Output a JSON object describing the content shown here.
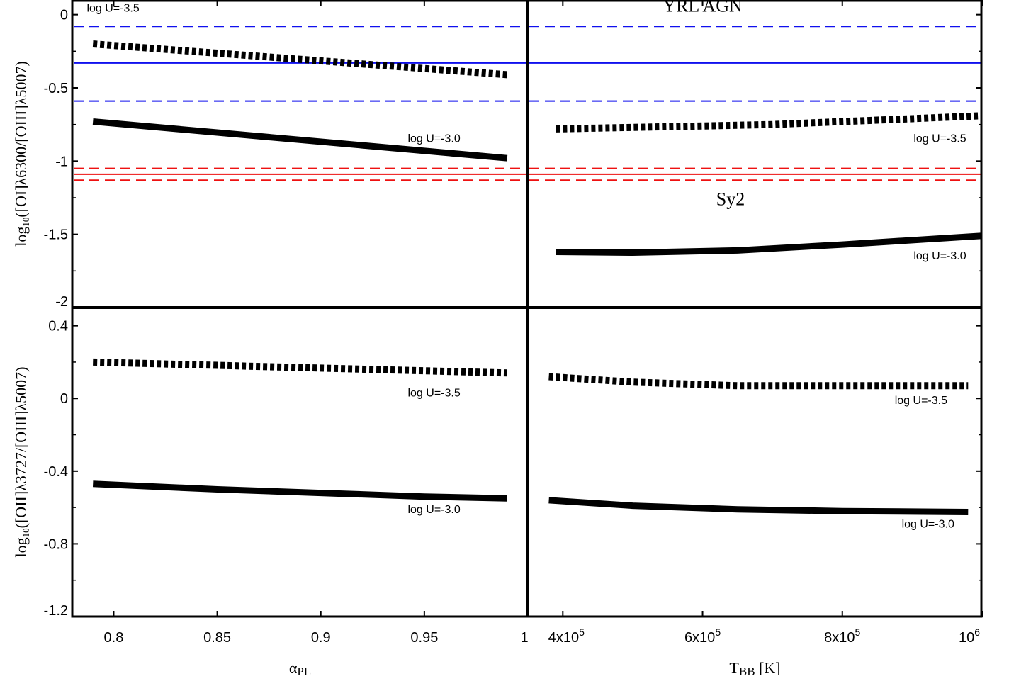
{
  "chart_data": [
    {
      "panel": "top-left",
      "type": "line",
      "xlim": [
        0.78,
        1.0
      ],
      "ylim": [
        -2,
        0.1
      ],
      "ylabel_parts": [
        "log",
        "10",
        "([OI]λ6300/[OIII]λ5007)"
      ],
      "yticks": [
        0,
        -0.5,
        -1,
        -1.5,
        -2
      ],
      "ytick_labels": [
        "0",
        "-0.5",
        "-1",
        "-1.5",
        "-2"
      ],
      "series": [
        {
          "style": "dotted",
          "x": [
            0.79,
            0.99
          ],
          "y": [
            -0.2,
            -0.41
          ]
        },
        {
          "style": "solid",
          "x": [
            0.79,
            0.99
          ],
          "y": [
            -0.73,
            -0.98
          ]
        }
      ],
      "hlines": [
        {
          "y": -0.08,
          "color": "#1010ee",
          "style": "dashed"
        },
        {
          "y": -0.33,
          "color": "#1010ee",
          "style": "solid"
        },
        {
          "y": -0.59,
          "color": "#1010ee",
          "style": "dashed"
        },
        {
          "y": -1.05,
          "color": "#ee1111",
          "style": "dashed"
        },
        {
          "y": -1.09,
          "color": "#ee1111",
          "style": "solid"
        },
        {
          "y": -1.13,
          "color": "#ee1111",
          "style": "dashed"
        }
      ],
      "annotations": [
        {
          "text": "log U=-3.5",
          "x": 0.787,
          "y": 0.02,
          "cls": "ann"
        },
        {
          "text": "log U=-3.0",
          "x": 0.942,
          "y": -0.87,
          "cls": "ann"
        }
      ]
    },
    {
      "panel": "top-right",
      "type": "line",
      "xlim": [
        350000,
        1000000
      ],
      "ylim": [
        -2,
        0.1
      ],
      "series": [
        {
          "style": "dotted",
          "x": [
            390000,
            500000,
            700000,
            850000,
            1000000
          ],
          "y": [
            -0.78,
            -0.77,
            -0.75,
            -0.72,
            -0.69
          ]
        },
        {
          "style": "solid",
          "x": [
            390000,
            500000,
            650000,
            800000,
            1000000
          ],
          "y": [
            -1.62,
            -1.625,
            -1.61,
            -1.57,
            -1.51
          ]
        }
      ],
      "hlines": [
        {
          "y": -0.08,
          "color": "#1010ee",
          "style": "dashed"
        },
        {
          "y": -0.33,
          "color": "#1010ee",
          "style": "solid"
        },
        {
          "y": -0.59,
          "color": "#1010ee",
          "style": "dashed"
        },
        {
          "y": -1.05,
          "color": "#ee1111",
          "style": "dashed"
        },
        {
          "y": -1.09,
          "color": "#ee1111",
          "style": "solid"
        },
        {
          "y": -1.13,
          "color": "#ee1111",
          "style": "dashed"
        }
      ],
      "annotations": [
        {
          "text": "YRL AGN",
          "x": 600000,
          "y": 0.02,
          "cls": "big"
        },
        {
          "text": "Sy2",
          "x": 640000,
          "y": -1.3,
          "cls": "big"
        },
        {
          "text": "log U=-3.5",
          "x": 902000,
          "y": -0.87,
          "cls": "ann"
        },
        {
          "text": "log U=-3.0",
          "x": 902000,
          "y": -1.67,
          "cls": "ann"
        }
      ]
    },
    {
      "panel": "bottom-left",
      "type": "line",
      "xlim": [
        0.78,
        1.0
      ],
      "ylim": [
        -1.2,
        0.5
      ],
      "ylabel_parts": [
        "log",
        "10",
        "([OII]λ3727/[OIII]λ5007)"
      ],
      "yticks": [
        0.4,
        0,
        -0.4,
        -0.8,
        -1.2
      ],
      "ytick_labels": [
        "0.4",
        "0",
        "-0.4",
        "-0.8",
        "-1.2"
      ],
      "xticks": [
        0.8,
        0.85,
        0.9,
        0.95,
        1.0
      ],
      "xtick_labels": [
        "0.8",
        "0.85",
        "0.9",
        "0.95",
        "1"
      ],
      "xlabel_parts": [
        "α",
        "PL"
      ],
      "series": [
        {
          "style": "dotted",
          "x": [
            0.79,
            0.99
          ],
          "y": [
            0.2,
            0.14
          ]
        },
        {
          "style": "solid",
          "x": [
            0.79,
            0.85,
            0.9,
            0.95,
            0.99
          ],
          "y": [
            -0.47,
            -0.5,
            -0.52,
            -0.54,
            -0.55
          ]
        }
      ],
      "annotations": [
        {
          "text": "log U=-3.5",
          "x": 0.942,
          "y": 0.01,
          "cls": "ann"
        },
        {
          "text": "log U=-3.0",
          "x": 0.942,
          "y": -0.63,
          "cls": "ann"
        }
      ]
    },
    {
      "panel": "bottom-right",
      "type": "line",
      "xlim": [
        350000,
        1000000
      ],
      "ylim": [
        -1.2,
        0.5
      ],
      "xticks": [
        400000,
        600000,
        800000,
        1000000
      ],
      "xtick_labels": [
        [
          "4x10",
          "5"
        ],
        [
          "6x10",
          "5"
        ],
        [
          "8x10",
          "5"
        ],
        [
          "10",
          "6"
        ]
      ],
      "xlabel_parts": [
        "T",
        "BB",
        " [K]"
      ],
      "series": [
        {
          "style": "dotted",
          "x": [
            380000,
            500000,
            650000,
            800000,
            980000
          ],
          "y": [
            0.12,
            0.09,
            0.07,
            0.07,
            0.07
          ]
        },
        {
          "style": "solid",
          "x": [
            380000,
            500000,
            650000,
            800000,
            980000
          ],
          "y": [
            -0.56,
            -0.59,
            -0.61,
            -0.62,
            -0.625
          ]
        }
      ],
      "annotations": [
        {
          "text": "log U=-3.5",
          "x": 875000,
          "y": -0.03,
          "cls": "ann"
        },
        {
          "text": "log U=-3.0",
          "x": 885000,
          "y": -0.71,
          "cls": "ann"
        }
      ]
    }
  ]
}
